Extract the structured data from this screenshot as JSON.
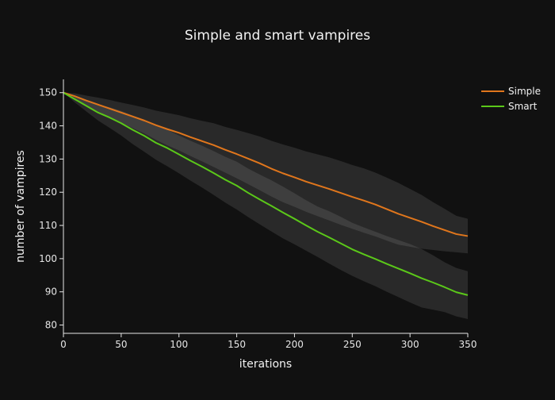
{
  "chart_data": {
    "type": "line",
    "title": "Simple and smart vampires",
    "xlabel": "iterations",
    "ylabel": "number of vampires",
    "xlim": [
      0,
      350
    ],
    "ylim": [
      77.5,
      154
    ],
    "x_ticks": [
      0,
      50,
      100,
      150,
      200,
      250,
      300,
      350
    ],
    "y_ticks": [
      80,
      90,
      100,
      110,
      120,
      130,
      140,
      150
    ],
    "grid": false,
    "legend_position": "top-right",
    "background_color": "#111111",
    "band_color": "#2a2a2a",
    "series": [
      {
        "name": "Simple",
        "color": "#e0761c",
        "x": [
          0,
          10,
          20,
          30,
          40,
          50,
          60,
          70,
          80,
          90,
          100,
          110,
          120,
          130,
          140,
          150,
          160,
          170,
          180,
          190,
          200,
          210,
          220,
          230,
          240,
          250,
          260,
          270,
          280,
          290,
          300,
          310,
          320,
          330,
          340,
          350
        ],
        "y": [
          150,
          148.9,
          147.6,
          146.4,
          145.2,
          144.0,
          142.8,
          141.6,
          140.2,
          139.0,
          137.9,
          136.6,
          135.4,
          134.2,
          132.8,
          131.5,
          130.1,
          128.7,
          127.1,
          125.7,
          124.5,
          123.2,
          122.1,
          121.0,
          119.8,
          118.6,
          117.5,
          116.3,
          114.9,
          113.5,
          112.3,
          111.1,
          109.8,
          108.6,
          107.4,
          106.8
        ],
        "lower": [
          150,
          148.0,
          146.1,
          144.3,
          142.6,
          141.0,
          139.3,
          137.7,
          135.8,
          134.1,
          132.6,
          130.9,
          129.3,
          127.6,
          125.9,
          124.2,
          122.4,
          120.6,
          118.7,
          117.0,
          115.6,
          114.1,
          112.8,
          111.5,
          110.2,
          109.0,
          107.8,
          106.7,
          105.4,
          104.2,
          103.6,
          103.0,
          102.6,
          102.2,
          101.9,
          101.6
        ],
        "upper": [
          150,
          149.8,
          149.1,
          148.5,
          147.8,
          147.0,
          146.3,
          145.5,
          144.6,
          143.9,
          143.2,
          142.3,
          141.5,
          140.8,
          139.7,
          138.8,
          137.8,
          136.8,
          135.5,
          134.4,
          133.4,
          132.3,
          131.4,
          130.5,
          129.4,
          128.2,
          127.2,
          125.9,
          124.4,
          122.8,
          121.0,
          119.2,
          117.0,
          115.0,
          112.9,
          112.0
        ]
      },
      {
        "name": "Smart",
        "color": "#5bc819",
        "x": [
          0,
          10,
          20,
          30,
          40,
          50,
          60,
          70,
          80,
          90,
          100,
          110,
          120,
          130,
          140,
          150,
          160,
          170,
          180,
          190,
          200,
          210,
          220,
          230,
          240,
          250,
          260,
          270,
          280,
          290,
          300,
          310,
          320,
          330,
          340,
          350
        ],
        "y": [
          150,
          148.0,
          146.0,
          144.0,
          142.5,
          140.8,
          138.8,
          137.0,
          134.9,
          133.3,
          131.4,
          129.5,
          127.7,
          125.8,
          123.8,
          122.0,
          119.8,
          117.8,
          115.9,
          113.9,
          112.0,
          110.0,
          108.1,
          106.4,
          104.6,
          102.8,
          101.3,
          99.9,
          98.4,
          97.0,
          95.6,
          94.1,
          92.8,
          91.4,
          89.9,
          89.0
        ],
        "lower": [
          150,
          147.0,
          144.3,
          141.6,
          139.4,
          137.1,
          134.5,
          132.2,
          129.8,
          127.8,
          125.7,
          123.5,
          121.4,
          119.2,
          116.9,
          114.8,
          112.5,
          110.3,
          108.2,
          106.1,
          104.3,
          102.4,
          100.5,
          98.5,
          96.6,
          94.8,
          93.2,
          91.7,
          90.0,
          88.4,
          86.8,
          85.3,
          84.6,
          83.9,
          82.6,
          81.8
        ],
        "upper": [
          150,
          149.0,
          147.7,
          146.4,
          145.6,
          144.5,
          143.1,
          141.8,
          140.0,
          138.8,
          137.1,
          135.5,
          134.0,
          132.4,
          130.7,
          129.2,
          127.1,
          125.3,
          123.6,
          121.7,
          119.7,
          117.6,
          115.7,
          114.3,
          112.6,
          110.8,
          109.4,
          108.1,
          106.8,
          105.6,
          104.4,
          102.9,
          101.0,
          98.9,
          97.2,
          96.2
        ]
      }
    ]
  }
}
